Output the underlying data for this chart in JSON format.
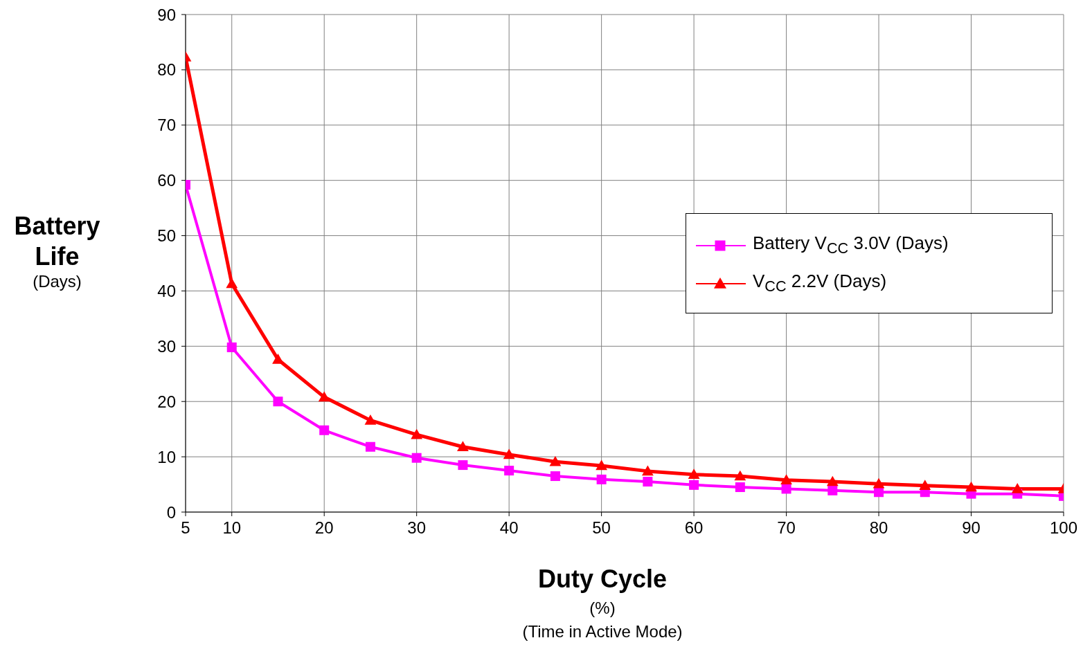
{
  "chart_data": {
    "type": "line",
    "xlabel": "Duty Cycle (%) (Time in Active Mode)",
    "ylabel": "Battery Life (Days)",
    "x": [
      5,
      10,
      15,
      20,
      25,
      30,
      35,
      40,
      45,
      50,
      55,
      60,
      65,
      70,
      75,
      80,
      85,
      90,
      95,
      100
    ],
    "series": [
      {
        "name": "Battery V$_{CC}$ 3.0V (Days)",
        "color": "#ff00ff",
        "marker": "square",
        "values": [
          59.2,
          29.8,
          20,
          14.8,
          11.8,
          9.8,
          8.5,
          7.5,
          6.5,
          5.9,
          5.5,
          4.9,
          4.5,
          4.2,
          3.9,
          3.6,
          3.6,
          3.3,
          3.3,
          2.9
        ]
      },
      {
        "name": "V$_{CC}$ 2.2V (Days)",
        "color": "#ff0000",
        "marker": "triangle",
        "values": [
          82.3,
          41.3,
          27.6,
          20.8,
          16.6,
          14,
          11.8,
          10.4,
          9.1,
          8.4,
          7.4,
          6.8,
          6.5,
          5.8,
          5.5,
          5.1,
          4.8,
          4.5,
          4.2,
          4.2
        ]
      }
    ],
    "xlim": [
      5,
      100
    ],
    "xticks": [
      5,
      10,
      20,
      30,
      40,
      50,
      60,
      70,
      80,
      90,
      100
    ],
    "ylim": [
      0,
      90
    ],
    "yticks": [
      0,
      10,
      20,
      30,
      40,
      50,
      60,
      70,
      80,
      90
    ],
    "grid": true,
    "legend": "right",
    "line_style": "solid"
  }
}
